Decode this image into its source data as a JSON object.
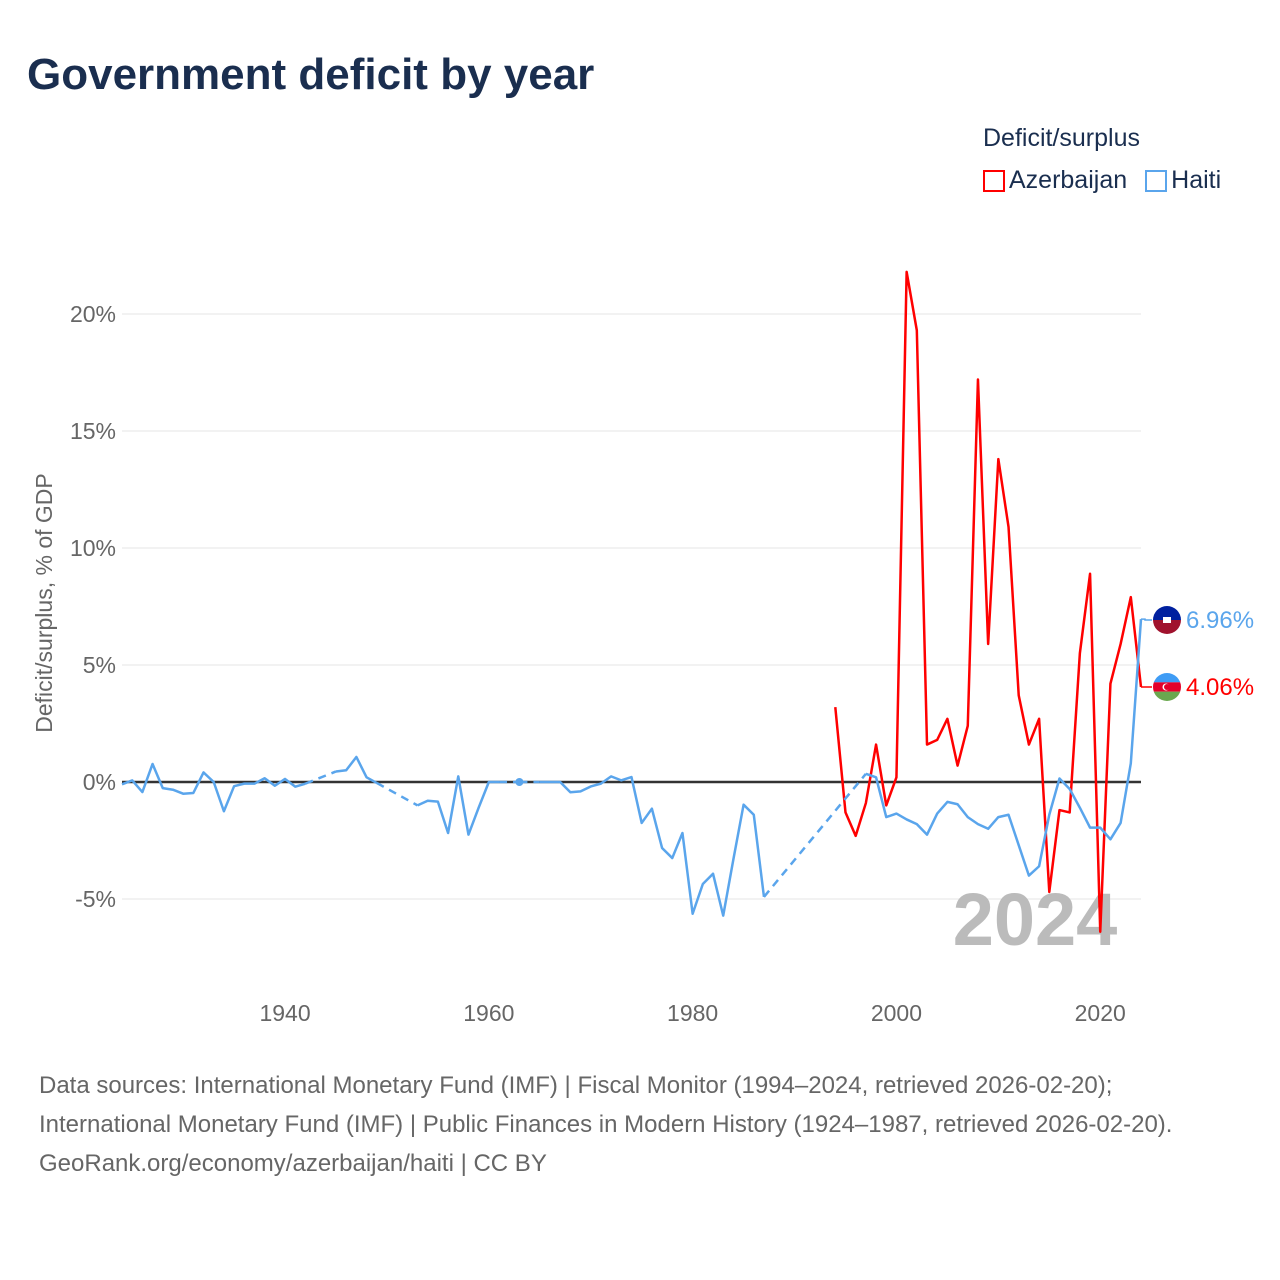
{
  "title": "Government deficit by year",
  "legend": {
    "title": "Deficit/surplus",
    "items": [
      {
        "label": "Azerbaijan",
        "color": "#ff0000"
      },
      {
        "label": "Haiti",
        "color": "#5aa5ec"
      }
    ]
  },
  "chart_data": {
    "type": "line",
    "title": "Government deficit by year",
    "xlabel": "",
    "ylabel": "Deficit/surplus, % of GDP",
    "xlim": [
      1924,
      2024
    ],
    "ylim": [
      -7,
      22.5
    ],
    "x_ticks": [
      1940,
      1960,
      1980,
      2000,
      2020
    ],
    "x_tick_labels": [
      "1940",
      "1960",
      "1980",
      "2000",
      "2020"
    ],
    "y_ticks": [
      -5,
      0,
      5,
      10,
      15,
      20
    ],
    "y_tick_labels": [
      "-5%",
      "0%",
      "5%",
      "10%",
      "15%",
      "20%"
    ],
    "grid": true,
    "year_label": "2024",
    "series": [
      {
        "name": "Azerbaijan",
        "color": "#ff0000",
        "end_label": "4.06%",
        "x": [
          1994,
          1995,
          1996,
          1997,
          1998,
          1999,
          2000,
          2001,
          2002,
          2003,
          2004,
          2005,
          2006,
          2007,
          2008,
          2009,
          2010,
          2011,
          2012,
          2013,
          2014,
          2015,
          2016,
          2017,
          2018,
          2019,
          2020,
          2021,
          2022,
          2023,
          2024
        ],
        "values": [
          3.2,
          -1.3,
          -2.3,
          -0.9,
          1.6,
          -1.0,
          0.2,
          21.8,
          19.3,
          1.6,
          1.8,
          2.7,
          0.7,
          2.4,
          17.2,
          5.9,
          13.8,
          10.9,
          3.7,
          1.6,
          2.7,
          -4.7,
          -1.2,
          -1.3,
          5.5,
          8.9,
          -6.4,
          4.2,
          5.9,
          7.9,
          4.06
        ]
      },
      {
        "name": "Haiti",
        "color": "#5aa5ec",
        "end_label": "6.96%",
        "x": [
          1924,
          1925,
          1926,
          1927,
          1928,
          1929,
          1930,
          1931,
          1932,
          1933,
          1934,
          1935,
          1936,
          1937,
          1938,
          1939,
          1940,
          1941,
          1942,
          1945,
          1946,
          1947,
          1948,
          1949,
          1953,
          1954,
          1955,
          1956,
          1957,
          1958,
          1959,
          1960,
          1961,
          1963,
          1965,
          1966,
          1967,
          1968,
          1969,
          1970,
          1971,
          1972,
          1973,
          1974,
          1975,
          1976,
          1977,
          1978,
          1979,
          1980,
          1981,
          1982,
          1983,
          1984,
          1985,
          1986,
          1987,
          1997,
          1998,
          1999,
          2000,
          2001,
          2002,
          2003,
          2004,
          2005,
          2006,
          2007,
          2008,
          2009,
          2010,
          2011,
          2012,
          2013,
          2014,
          2015,
          2016,
          2017,
          2018,
          2019,
          2020,
          2021,
          2022,
          2023,
          2024
        ],
        "values": [
          -0.1,
          0.07,
          -0.43,
          0.77,
          -0.26,
          -0.33,
          -0.5,
          -0.47,
          0.41,
          0,
          -1.25,
          -0.18,
          -0.07,
          -0.07,
          0.16,
          -0.16,
          0.13,
          -0.2,
          -0.07,
          0.45,
          0.5,
          1.07,
          0.2,
          -0.04,
          -1.0,
          -0.8,
          -0.84,
          -2.18,
          0.24,
          -2.25,
          -1.1,
          0,
          0,
          0,
          0,
          0,
          0,
          -0.44,
          -0.4,
          -0.19,
          -0.07,
          0.24,
          0.07,
          0.21,
          -1.75,
          -1.14,
          -2.82,
          -3.25,
          -2.18,
          -5.63,
          -4.36,
          -3.92,
          -5.71,
          -3.3,
          -0.97,
          -1.4,
          -4.91,
          0.35,
          0.2,
          -1.5,
          -1.35,
          -1.6,
          -1.8,
          -2.25,
          -1.35,
          -0.85,
          -0.95,
          -1.5,
          -1.8,
          -2.0,
          -1.5,
          -1.4,
          -2.7,
          -4.0,
          -3.6,
          -1.4,
          0.15,
          -0.3,
          -1.1,
          -1.95,
          -1.95,
          -2.45,
          -1.75,
          0.8,
          6.96
        ]
      }
    ]
  },
  "footer": {
    "sources": "Data sources: International Monetary Fund (IMF) | Fiscal Monitor (1994–2024, retrieved 2026-02-20); International Monetary Fund (IMF) | Public Finances in Modern History (1924–1987, retrieved 2026-02-20).",
    "link": "GeoRank.org/economy/azerbaijan/haiti | CC BY"
  }
}
